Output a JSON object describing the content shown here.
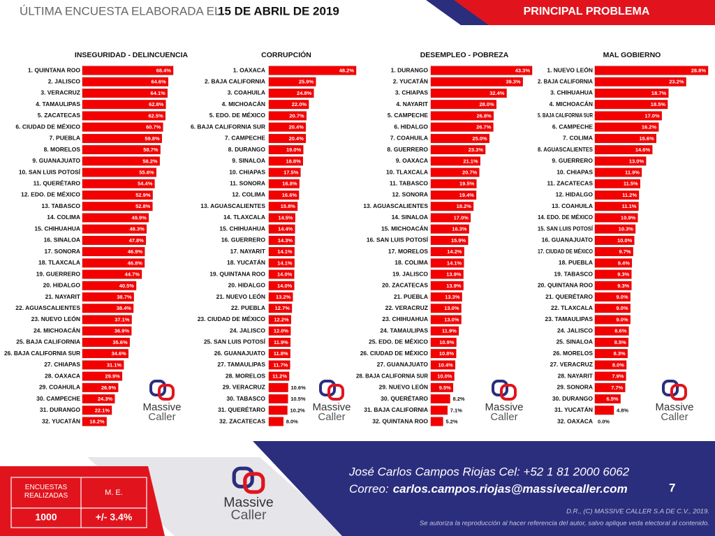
{
  "header": {
    "lead": "ÚLTIMA ENCUESTA ELABORADA EL",
    "date": "15 DE ABRIL DE 2019",
    "section": "PRINCIPAL PROBLEMA"
  },
  "logo": {
    "line1": "Massive",
    "line2": "Caller"
  },
  "chart_data": [
    {
      "type": "bar",
      "orientation": "horizontal",
      "title": "INSEGURIDAD - DELINCUENCIA",
      "color": "#f40000",
      "categories": [
        "1. QUINTANA ROO",
        "2. JALISCO",
        "3. VERACRUZ",
        "4. TAMAULIPAS",
        "5. ZACATECAS",
        "6. CIUDAD DE MÉXICO",
        "7. PUEBLA",
        "8. MORELOS",
        "9. GUANAJUATO",
        "10. SAN LUIS POTOSÍ",
        "11. QUERÉTARO",
        "12. EDO. DE MÉXICO",
        "13. TABASCO",
        "14. COLIMA",
        "15. CHIHUAHUA",
        "16. SINALOA",
        "17. SONORA",
        "18. TLAXCALA",
        "19. GUERRERO",
        "20. HIDALGO",
        "21. NAYARIT",
        "22. AGUASCALIENTES",
        "23. NUEVO LEÓN",
        "24. MICHOACÁN",
        "25. BAJA CALIFORNIA",
        "26. BAJA CALIFORNIA SUR",
        "27. CHIAPAS",
        "28. OAXACA",
        "29. COAHUILA",
        "30. CAMPECHE",
        "31. DURANGO",
        "32. YUCATÁN"
      ],
      "values": [
        68.4,
        64.6,
        64.1,
        62.8,
        62.5,
        60.7,
        59.8,
        58.7,
        58.2,
        55.6,
        54.4,
        52.9,
        52.8,
        49.9,
        48.3,
        47.8,
        46.9,
        46.8,
        44.7,
        40.5,
        38.7,
        38.4,
        37.1,
        36.9,
        35.6,
        34.6,
        31.1,
        29.9,
        26.9,
        24.3,
        22.1,
        18.2
      ],
      "value_labels": [
        "68.4%",
        "64.6%",
        "64.1%",
        "62.8%",
        "62.5%",
        "60.7%",
        "59.8%",
        "58.7%",
        "58.2%",
        "55.6%",
        "54.4%",
        "52.9%",
        "52.8%",
        "49.9%",
        "48.3%",
        "47.8%",
        "46.9%",
        "46.8%",
        "44.7%",
        "40.5%",
        "38.7%",
        "38.4%",
        "37.1%",
        "36.9%",
        "35.6%",
        "34.6%",
        "31.1%",
        "29.9%",
        "26.9%",
        "24.3%",
        "22.1%",
        "18.2%"
      ]
    },
    {
      "type": "bar",
      "orientation": "horizontal",
      "title": "CORRUPCIÓN",
      "color": "#f40000",
      "categories": [
        "1. OAXACA",
        "2. BAJA CALIFORNIA",
        "3. COAHUILA",
        "4. MICHOACÁN",
        "5. EDO. DE MÉXICO",
        "6. BAJA CALIFORNIA SUR",
        "7. CAMPECHE",
        "8. DURANGO",
        "9. SINALOA",
        "10. CHIAPAS",
        "11. SONORA",
        "12. COLIMA",
        "13. AGUASCALIENTES",
        "14. TLAXCALA",
        "15. CHIHUAHUA",
        "16. GUERRERO",
        "17. NAYARIT",
        "18. YUCATÁN",
        "19. QUINTANA ROO",
        "20. HIDALGO",
        "21. NUEVO LEÓN",
        "22. PUEBLA",
        "23. CIUDAD DE MÉXICO",
        "24. JALISCO",
        "25. SAN LUIS POTOSÍ",
        "26. GUANAJUATO",
        "27. TAMAULIPAS",
        "28. MORELOS",
        "29. VERACRUZ",
        "30. TABASCO",
        "31. QUERÉTARO",
        "32. ZACATECAS"
      ],
      "values": [
        48.2,
        25.9,
        24.8,
        22.0,
        20.7,
        20.4,
        20.4,
        19.0,
        18.8,
        17.5,
        16.8,
        16.6,
        15.8,
        14.5,
        14.4,
        14.3,
        14.1,
        14.1,
        14.0,
        14.0,
        13.2,
        12.7,
        12.2,
        12.0,
        11.9,
        11.8,
        11.7,
        11.2,
        10.6,
        10.5,
        10.2,
        8.0
      ],
      "value_labels": [
        "48.2%",
        "25.9%",
        "24.8%",
        "22.0%",
        "20.7%",
        "20.4%",
        "20.4%",
        "19.0%",
        "18.8%",
        "17.5%",
        "16.8%",
        "16.6%",
        "15.8%",
        "14.5%",
        "14.4%",
        "14.3%",
        "14.1%",
        "14.1%",
        "14.0%",
        "14.0%",
        "13.2%",
        "12.7%",
        "12.2%",
        "12.0%",
        "11.9%",
        "11.8%",
        "11.7%",
        "11.2%",
        "10.6%",
        "10.5%",
        "10.2%",
        "8.0%"
      ]
    },
    {
      "type": "bar",
      "orientation": "horizontal",
      "title": "DESEMPLEO - POBREZA",
      "color": "#f40000",
      "categories": [
        "1. DURANGO",
        "2. YUCATÁN",
        "3. CHIAPAS",
        "4. NAYARIT",
        "5. CAMPECHE",
        "6. HIDALGO",
        "7. COAHUILA",
        "8. GUERRERO",
        "9. OAXACA",
        "10. TLAXCALA",
        "11. TABASCO",
        "12. SONORA",
        "13. AGUASCALIENTES",
        "14. SINALOA",
        "15. MICHOACÁN",
        "16. SAN LUIS POTOSÍ",
        "17. MORELOS",
        "18. COLIMA",
        "19. JALISCO",
        "20. ZACATECAS",
        "21. PUEBLA",
        "22. VERACRUZ",
        "23. CHIHUAHUA",
        "24. TAMAULIPAS",
        "25. EDO. DE MÉXICO",
        "26. CIUDAD DE MÉXICO",
        "27. GUANAJUATO",
        "28. BAJA CALIFORNIA SUR",
        "29. NUEVO LEÓN",
        "30. QUERÉTARO",
        "31. BAJA CALIFORNIA",
        "32. QUINTANA ROO"
      ],
      "values": [
        43.3,
        39.3,
        32.4,
        28.0,
        26.8,
        26.7,
        25.0,
        23.3,
        21.1,
        20.7,
        19.5,
        19.4,
        18.2,
        17.0,
        16.3,
        15.9,
        14.2,
        14.1,
        13.9,
        13.9,
        13.3,
        13.0,
        13.0,
        11.9,
        10.9,
        10.8,
        10.4,
        10.0,
        9.5,
        8.2,
        7.1,
        5.2
      ],
      "value_labels": [
        "43.3%",
        "39.3%",
        "32.4%",
        "28.0%",
        "26.8%",
        "26.7%",
        "25.0%",
        "23.3%",
        "21.1%",
        "20.7%",
        "19.5%",
        "19.4%",
        "18.2%",
        "17.0%",
        "16.3%",
        "15.9%",
        "14.2%",
        "14.1%",
        "13.9%",
        "13.9%",
        "13.3%",
        "13.0%",
        "13.0%",
        "11.9%",
        "10.9%",
        "10.8%",
        "10.4%",
        "10.0%",
        "9.5%",
        "8.2%",
        "7.1%",
        "5.2%"
      ]
    },
    {
      "type": "bar",
      "orientation": "horizontal",
      "title": "MAL GOBIERNO",
      "color": "#f40000",
      "categories": [
        "1. NUEVO LEÓN",
        "2. BAJA CALIFORNIA",
        "3. CHIHUAHUA",
        "4. MICHOACÁN",
        "5. BAJA CALIFORNIA SUR",
        "6. CAMPECHE",
        "7. COLIMA",
        "8. AGUASCALIENTES",
        "9. GUERRERO",
        "10. CHIAPAS",
        "11. ZACATECAS",
        "12. HIDALGO",
        "13. COAHUILA",
        "14. EDO. DE MÉXICO",
        "15. SAN LUIS POTOSÍ",
        "16. GUANAJUATO",
        "17. CIUDAD DE MÉXICO",
        "18. PUEBLA",
        "19. TABASCO",
        "20. QUINTANA ROO",
        "21. QUERÉTARO",
        "22. TLAXCALA",
        "23. TAMAULIPAS",
        "24. JALISCO",
        "25. SINALOA",
        "26. MORELOS",
        "27. VERACRUZ",
        "28. NAYARIT",
        "29. SONORA",
        "30. DURANGO",
        "31. YUCATÁN",
        "32. OAXACA"
      ],
      "values": [
        28.8,
        23.2,
        18.7,
        18.5,
        17.0,
        16.2,
        15.6,
        14.6,
        13.0,
        11.9,
        11.5,
        11.2,
        11.1,
        10.9,
        10.3,
        10.0,
        9.7,
        9.4,
        9.3,
        9.3,
        9.0,
        9.0,
        9.0,
        8.6,
        8.5,
        8.3,
        8.0,
        7.9,
        7.7,
        6.5,
        4.8,
        0.0
      ],
      "value_labels": [
        "28.8%",
        "23.2%",
        "18.7%",
        "18.5%",
        "17.0%",
        "16.2%",
        "15.6%",
        "14.6%",
        "13.0%",
        "11.9%",
        "11.5%",
        "11.2%",
        "11.1%",
        "10.9%",
        "10.3%",
        "10.0%",
        "9.7%",
        "9.4%",
        "9.3%",
        "9.3%",
        "9.0%",
        "9.0%",
        "9.0%",
        "8.6%",
        "8.5%",
        "8.3%",
        "8.0%",
        "7.9%",
        "7.7%",
        "6.5%",
        "4.8%",
        "0.0%"
      ]
    }
  ],
  "summary": {
    "surveys_header": "ENCUESTAS REALIZADAS",
    "margin_header": "M. E.",
    "surveys": "1000",
    "margin": "+/- 3.4%"
  },
  "contact": {
    "line1": "José Carlos Campos Riojas Cel: +52 1 81 2000 6062",
    "mail_label": "Correo:",
    "mail": "carlos.campos.riojas@massivecaller.com",
    "page": "7",
    "rights": "D.R., (C) MASSIVE CALLER S.A DE C.V., 2019.",
    "notice": "Se autoriza la reproducción al hacer referencia del autor, salvo aplique veda electoral al contenido."
  }
}
